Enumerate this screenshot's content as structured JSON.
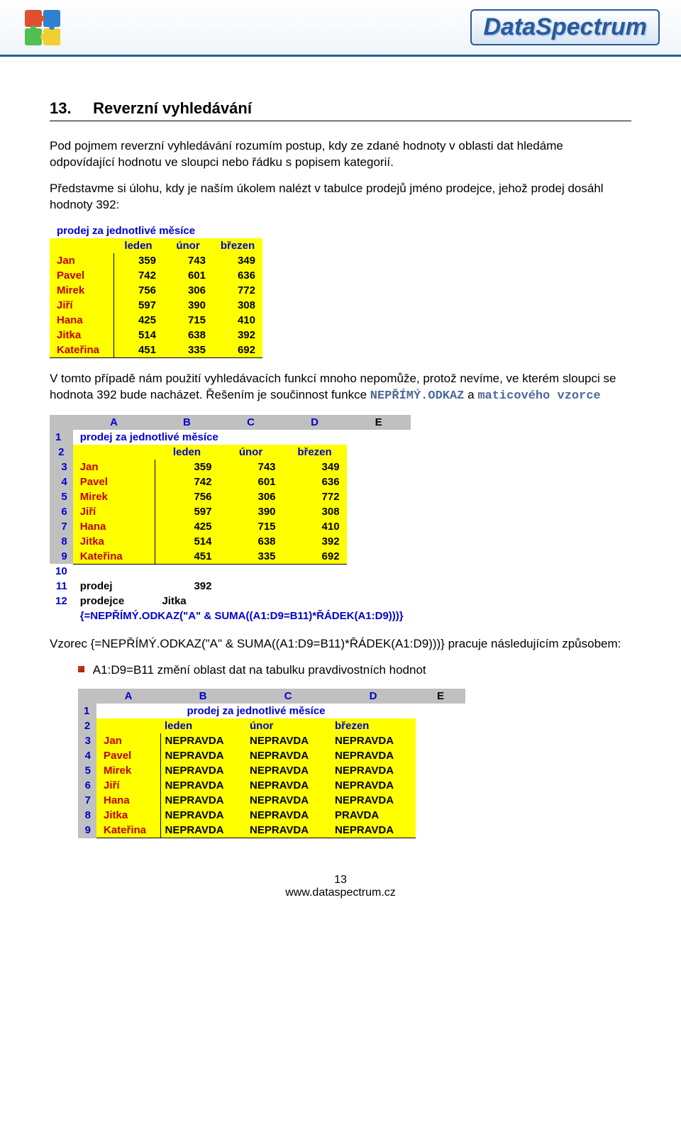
{
  "header": {
    "brand": "DataSpectrum"
  },
  "section": {
    "number": "13.",
    "title": "Reverzní vyhledávání",
    "intro": "Pod pojmem reverzní vyhledávání rozumím postup, kdy ze zdané hodnoty v oblasti dat hledáme odpovídající hodnotu ve sloupci nebo řádku s popisem kategorií.",
    "task": "Představme si úlohu, kdy je naším úkolem nalézt v tabulce prodejů jméno prodejce, jehož prodej dosáhl hodnoty 392:"
  },
  "table1": {
    "title": "prodej za jednotlivé měsíce",
    "months": [
      "leden",
      "únor",
      "březen"
    ],
    "rows": [
      {
        "name": "Jan",
        "vals": [
          359,
          743,
          349
        ]
      },
      {
        "name": "Pavel",
        "vals": [
          742,
          601,
          636
        ]
      },
      {
        "name": "Mirek",
        "vals": [
          756,
          306,
          772
        ]
      },
      {
        "name": "Jiří",
        "vals": [
          597,
          390,
          308
        ]
      },
      {
        "name": "Hana",
        "vals": [
          425,
          715,
          410
        ]
      },
      {
        "name": "Jitka",
        "vals": [
          514,
          638,
          392
        ]
      },
      {
        "name": "Kateřina",
        "vals": [
          451,
          335,
          692
        ]
      }
    ]
  },
  "para2": {
    "text1": "V tomto případě nám použití vyhledávacích funkcí mnoho nepomůže, protož nevíme, ve kterém sloupci se hodnota 392 bude nacházet. Řešením je součinnost funkce ",
    "func1": "NEPŘÍMÝ.ODKAZ",
    "text2": " a ",
    "func2": "maticového vzorce"
  },
  "table2": {
    "cols": [
      "A",
      "B",
      "C",
      "D",
      "E"
    ],
    "title": "prodej za jednotlivé měsíce",
    "months": [
      "leden",
      "únor",
      "březen"
    ],
    "rows": [
      {
        "n": 3,
        "name": "Jan",
        "vals": [
          359,
          743,
          349
        ]
      },
      {
        "n": 4,
        "name": "Pavel",
        "vals": [
          742,
          601,
          636
        ]
      },
      {
        "n": 5,
        "name": "Mirek",
        "vals": [
          756,
          306,
          772
        ]
      },
      {
        "n": 6,
        "name": "Jiří",
        "vals": [
          597,
          390,
          308
        ]
      },
      {
        "n": 7,
        "name": "Hana",
        "vals": [
          425,
          715,
          410
        ]
      },
      {
        "n": 8,
        "name": "Jitka",
        "vals": [
          514,
          638,
          392
        ]
      },
      {
        "n": 9,
        "name": "Kateřina",
        "vals": [
          451,
          335,
          692
        ]
      }
    ],
    "row10": 10,
    "row11": {
      "n": 11,
      "label": "prodej",
      "val": 392
    },
    "row12": {
      "n": 12,
      "label": "prodejce",
      "val": "Jitka"
    },
    "formula": "{=NEPŘÍMÝ.ODKAZ(\"A\" & SUMA((A1:D9=B11)*ŘÁDEK(A1:D9)))}"
  },
  "para3": {
    "text1": "Vzorec {=NEPŘÍMÝ.ODKAZ(\"A\" & SUMA((A1:D9=B11)*ŘÁDEK(A1:D9)))} pracuje následujícím způsobem:",
    "bullet": "A1:D9=B11 změní oblast dat na tabulku pravdivostních hodnot"
  },
  "table3": {
    "cols": [
      "A",
      "B",
      "C",
      "D",
      "E"
    ],
    "title": "prodej za jednotlivé měsíce",
    "months": [
      "leden",
      "únor",
      "březen"
    ],
    "rows": [
      {
        "n": 3,
        "name": "Jan",
        "vals": [
          "NEPRAVDA",
          "NEPRAVDA",
          "NEPRAVDA"
        ]
      },
      {
        "n": 4,
        "name": "Pavel",
        "vals": [
          "NEPRAVDA",
          "NEPRAVDA",
          "NEPRAVDA"
        ]
      },
      {
        "n": 5,
        "name": "Mirek",
        "vals": [
          "NEPRAVDA",
          "NEPRAVDA",
          "NEPRAVDA"
        ]
      },
      {
        "n": 6,
        "name": "Jiří",
        "vals": [
          "NEPRAVDA",
          "NEPRAVDA",
          "NEPRAVDA"
        ]
      },
      {
        "n": 7,
        "name": "Hana",
        "vals": [
          "NEPRAVDA",
          "NEPRAVDA",
          "NEPRAVDA"
        ]
      },
      {
        "n": 8,
        "name": "Jitka",
        "vals": [
          "NEPRAVDA",
          "NEPRAVDA",
          "PRAVDA"
        ]
      },
      {
        "n": 9,
        "name": "Kateřina",
        "vals": [
          "NEPRAVDA",
          "NEPRAVDA",
          "NEPRAVDA"
        ]
      }
    ]
  },
  "footer": {
    "pagenum": "13",
    "url": "www.dataspectrum.cz"
  },
  "colors": {
    "blue": "#0000d0",
    "red": "#c00000",
    "yellow": "#ffff00",
    "gray": "#c0c0c0",
    "brand": "#2a5a9a"
  }
}
